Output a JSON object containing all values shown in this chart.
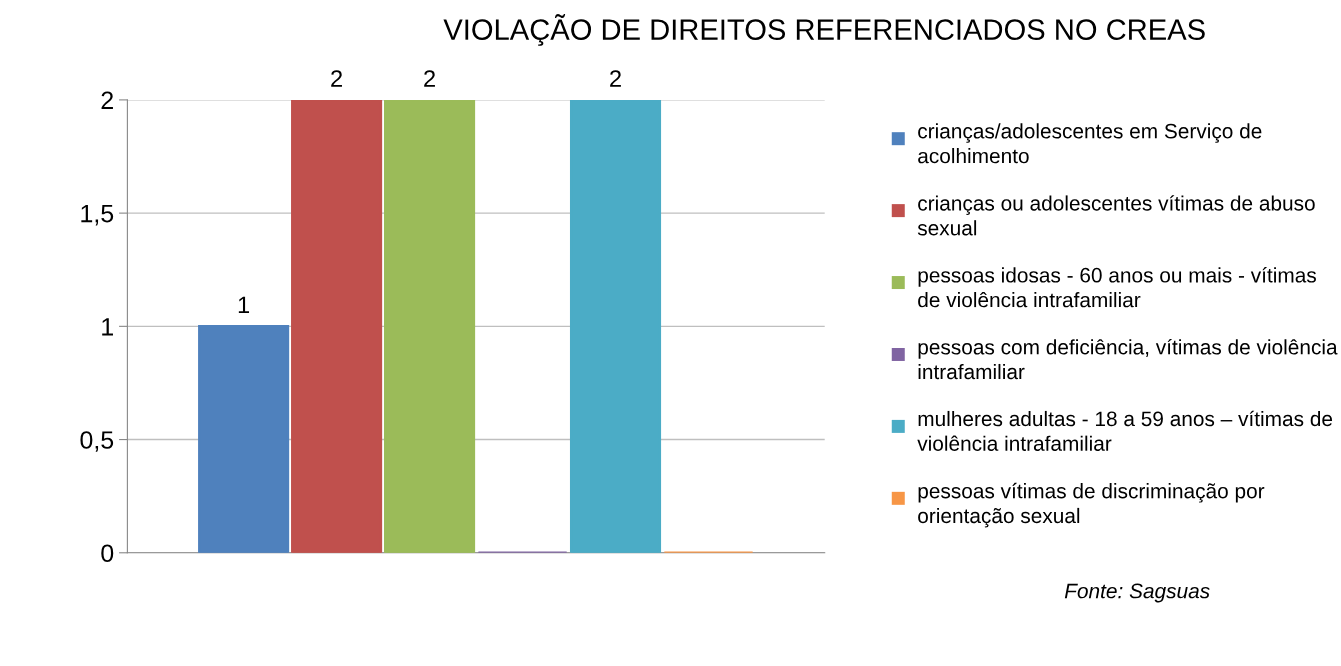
{
  "chart_data": {
    "type": "bar",
    "title": "VIOLAÇÃO DE DIREITOS REFERENCIADOS NO CREAS",
    "categories": [
      null
    ],
    "series": [
      {
        "name": "crianças/adolescentes em Serviço de acolhimento",
        "color": "#4f81bd",
        "values": [
          1
        ],
        "value_labels": [
          "1"
        ]
      },
      {
        "name": "crianças ou adolescentes vítimas de abuso sexual",
        "color": "#c0504d",
        "values": [
          2
        ],
        "value_labels": [
          "2"
        ]
      },
      {
        "name": "pessoas idosas - 60 anos ou mais - vítimas de violência intrafamiliar",
        "color": "#9bbb59",
        "values": [
          2
        ],
        "value_labels": [
          "2"
        ]
      },
      {
        "name": "pessoas com deficiência, vítimas de violência intrafamiliar",
        "color": "#8064a2",
        "values": [
          0
        ],
        "value_labels": [
          null
        ]
      },
      {
        "name": "mulheres adultas - 18 a 59 anos – vítimas de violência intrafamiliar",
        "color": "#4bacc6",
        "values": [
          2
        ],
        "value_labels": [
          "2"
        ]
      },
      {
        "name": "pessoas vítimas de discriminação por orientação sexual",
        "color": "#f79646",
        "values": [
          0
        ],
        "value_labels": [
          null
        ]
      }
    ],
    "ylim": [
      0,
      2
    ],
    "yticks": [
      0,
      {
        "value": 0.5,
        "label": "0,5"
      },
      1,
      {
        "value": 1.5,
        "label": "1,5"
      },
      2
    ],
    "grid": "y",
    "legend": "right",
    "annotations": [
      "Fonte: Sagsuas"
    ]
  }
}
